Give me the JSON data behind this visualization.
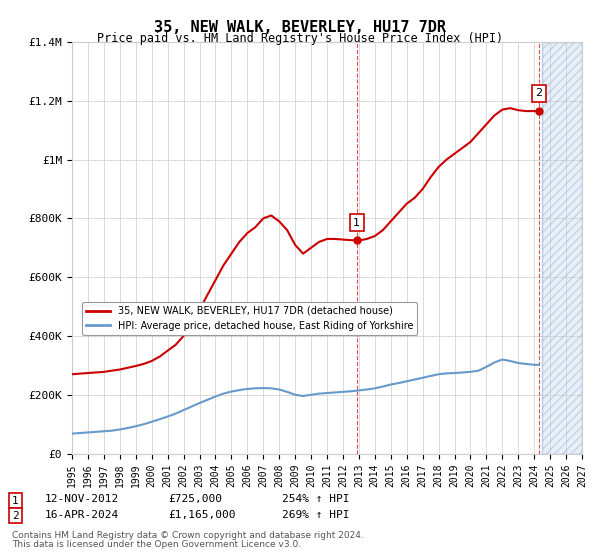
{
  "title": "35, NEW WALK, BEVERLEY, HU17 7DR",
  "subtitle": "Price paid vs. HM Land Registry's House Price Index (HPI)",
  "legend_line1": "35, NEW WALK, BEVERLEY, HU17 7DR (detached house)",
  "legend_line2": "HPI: Average price, detached house, East Riding of Yorkshire",
  "annotation1_label": "1",
  "annotation1_date": "12-NOV-2012",
  "annotation1_price": "£725,000",
  "annotation1_hpi": "254% ↑ HPI",
  "annotation1_year": 2012.87,
  "annotation1_value": 725000,
  "annotation2_label": "2",
  "annotation2_date": "16-APR-2024",
  "annotation2_price": "£1,165,000",
  "annotation2_hpi": "269% ↑ HPI",
  "annotation2_year": 2024.29,
  "annotation2_value": 1165000,
  "footer1": "Contains HM Land Registry data © Crown copyright and database right 2024.",
  "footer2": "This data is licensed under the Open Government Licence v3.0.",
  "xmin": 1995,
  "xmax": 2027,
  "ymin": 0,
  "ymax": 1400000,
  "hatch_start": 2024.5,
  "red_color": "#cc0000",
  "blue_color": "#6699cc",
  "grid_color": "#cccccc",
  "background_color": "#ffffff",
  "hatch_color": "#ddeeff",
  "red_x": [
    1995.0,
    1995.5,
    1996.0,
    1996.5,
    1997.0,
    1997.5,
    1998.0,
    1998.5,
    1999.0,
    1999.5,
    2000.0,
    2000.5,
    2001.0,
    2001.5,
    2002.0,
    2002.5,
    2003.0,
    2003.5,
    2004.0,
    2004.5,
    2005.0,
    2005.5,
    2006.0,
    2006.5,
    2007.0,
    2007.5,
    2008.0,
    2008.5,
    2009.0,
    2009.5,
    2010.0,
    2010.5,
    2011.0,
    2011.5,
    2012.0,
    2012.5,
    2012.87,
    2013.0,
    2013.5,
    2014.0,
    2014.5,
    2015.0,
    2015.5,
    2016.0,
    2016.5,
    2017.0,
    2017.5,
    2018.0,
    2018.5,
    2019.0,
    2019.5,
    2020.0,
    2020.5,
    2021.0,
    2021.5,
    2022.0,
    2022.5,
    2023.0,
    2023.5,
    2024.0,
    2024.29
  ],
  "red_y": [
    270000,
    272000,
    274000,
    276000,
    278000,
    282000,
    286000,
    292000,
    298000,
    305000,
    315000,
    330000,
    350000,
    370000,
    400000,
    440000,
    490000,
    540000,
    590000,
    640000,
    680000,
    720000,
    750000,
    770000,
    800000,
    810000,
    790000,
    760000,
    710000,
    680000,
    700000,
    720000,
    730000,
    730000,
    728000,
    726000,
    725000,
    725000,
    730000,
    740000,
    760000,
    790000,
    820000,
    850000,
    870000,
    900000,
    940000,
    975000,
    1000000,
    1020000,
    1040000,
    1060000,
    1090000,
    1120000,
    1150000,
    1170000,
    1175000,
    1168000,
    1165000,
    1165000,
    1165000
  ],
  "blue_x": [
    1995.0,
    1995.5,
    1996.0,
    1996.5,
    1997.0,
    1997.5,
    1998.0,
    1998.5,
    1999.0,
    1999.5,
    2000.0,
    2000.5,
    2001.0,
    2001.5,
    2002.0,
    2002.5,
    2003.0,
    2003.5,
    2004.0,
    2004.5,
    2005.0,
    2005.5,
    2006.0,
    2006.5,
    2007.0,
    2007.5,
    2008.0,
    2008.5,
    2009.0,
    2009.5,
    2010.0,
    2010.5,
    2011.0,
    2011.5,
    2012.0,
    2012.5,
    2013.0,
    2013.5,
    2014.0,
    2014.5,
    2015.0,
    2015.5,
    2016.0,
    2016.5,
    2017.0,
    2017.5,
    2018.0,
    2018.5,
    2019.0,
    2019.5,
    2020.0,
    2020.5,
    2021.0,
    2021.5,
    2022.0,
    2022.5,
    2023.0,
    2023.5,
    2024.0,
    2024.29
  ],
  "blue_y": [
    68000,
    70000,
    72000,
    74000,
    76000,
    78000,
    82000,
    87000,
    93000,
    100000,
    108000,
    117000,
    126000,
    136000,
    148000,
    160000,
    172000,
    183000,
    194000,
    204000,
    211000,
    216000,
    220000,
    222000,
    223000,
    222000,
    218000,
    210000,
    200000,
    196000,
    200000,
    204000,
    206000,
    208000,
    210000,
    212000,
    215000,
    218000,
    222000,
    228000,
    235000,
    240000,
    246000,
    252000,
    258000,
    264000,
    270000,
    273000,
    274000,
    276000,
    278000,
    282000,
    295000,
    310000,
    320000,
    315000,
    308000,
    305000,
    302000,
    302000
  ]
}
